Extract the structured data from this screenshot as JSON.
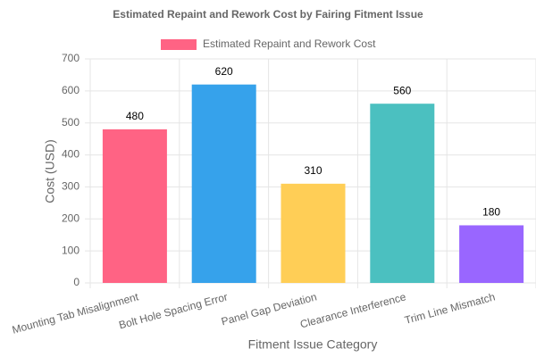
{
  "chart_data": {
    "type": "bar",
    "title": "Estimated Repaint and Rework Cost by Fairing Fitment Issue",
    "x_label": "Fitment Issue Category",
    "y_label": "Cost (USD)",
    "categories": [
      "Mounting Tab Misalignment",
      "Bolt Hole Spacing Error",
      "Panel Gap Deviation",
      "Clearance Interference",
      "Trim Line Mismatch"
    ],
    "series": [
      {
        "name": "Estimated Repaint and Rework Cost",
        "colors": [
          "#ff6384",
          "#36a2eb",
          "#ffce56",
          "#4bc0c0",
          "#9966ff"
        ],
        "values": [
          480,
          620,
          310,
          560,
          180
        ]
      }
    ],
    "ylim": [
      0,
      700
    ],
    "yticks": [
      0,
      100,
      200,
      300,
      400,
      500,
      600,
      700
    ],
    "grid": true,
    "legend": "top"
  }
}
